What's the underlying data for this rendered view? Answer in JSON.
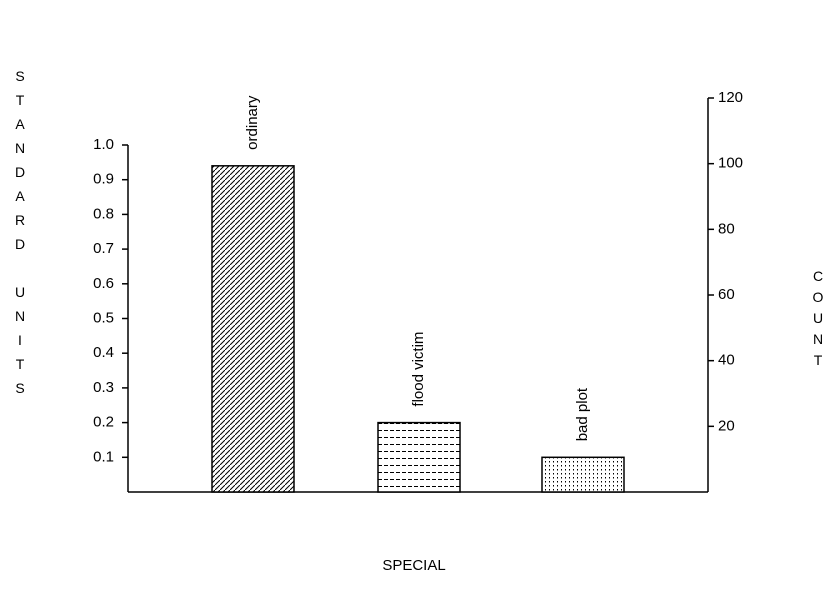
{
  "chart_data": {
    "type": "bar",
    "categories": [
      "ordinary",
      "flood victim",
      "bad plot"
    ],
    "values": [
      0.94,
      0.2,
      0.1
    ],
    "ylabel": "STANDARD UNITS",
    "y2label": "COUNT",
    "xlabel": "SPECIAL",
    "ylim": [
      0,
      1.0
    ],
    "yticks": [
      0.1,
      0.2,
      0.3,
      0.4,
      0.5,
      0.6,
      0.7,
      0.8,
      0.9,
      {
        "value": 1.0,
        "label": "1.0"
      }
    ],
    "y2lim": [
      0,
      120
    ],
    "y2ticks": [
      20,
      40,
      60,
      80,
      100,
      120
    ],
    "color": "#000000"
  }
}
